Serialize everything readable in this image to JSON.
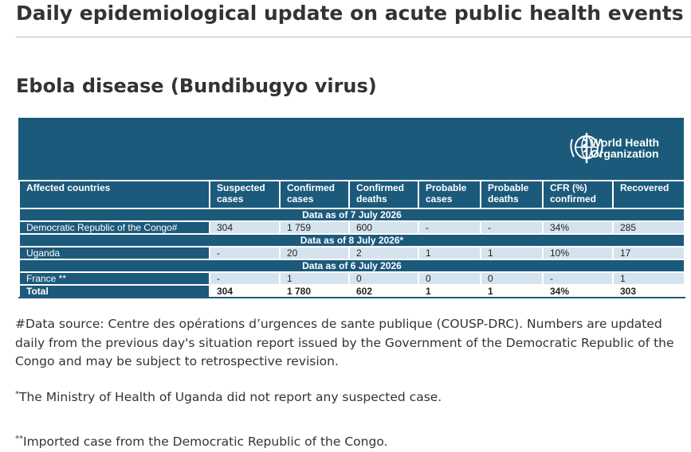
{
  "header": {
    "title": "Daily epidemiological update on acute public health events"
  },
  "section": {
    "title": "Ebola disease (Bundibugyo virus)"
  },
  "logo": {
    "line1": "World Health",
    "line2": "Organization"
  },
  "table": {
    "columns": [
      "Affected countries",
      "Suspected cases",
      "Confirmed cases",
      "Confirmed deaths",
      "Probable cases",
      "Probable deaths",
      "CFR (%) confirmed",
      "Recovered"
    ],
    "sections": [
      {
        "heading": "Data as of 7 July 2026",
        "rows": [
          [
            "Democratic Republic of the Congo#",
            "304",
            "1 759",
            "600",
            "-",
            "-",
            "34%",
            "285"
          ]
        ]
      },
      {
        "heading": "Data as of 8 July 2026*",
        "rows": [
          [
            "Uganda",
            "-",
            "20",
            "2",
            "1",
            "1",
            "10%",
            "17"
          ]
        ]
      },
      {
        "heading": "Data as of 6 July 2026",
        "rows": [
          [
            "France **",
            "-",
            "1",
            "0",
            "0",
            "0",
            "-",
            "1"
          ]
        ]
      }
    ],
    "total": [
      "Total",
      "304",
      "1 780",
      "602",
      "1",
      "1",
      "34%",
      "303"
    ]
  },
  "footnotes": [
    {
      "text": "#Data source: Centre des opérations d’urgences de sante publique (COUSP-DRC). Numbers are updated daily from the previous day's situation report issued by the Government of the Democratic Republic of the Congo and may be subject to retrospective revision."
    },
    {
      "marker": "*",
      "text": "The Ministry of Health of Uganda did not report any suspected case."
    },
    {
      "marker": "**",
      "text": "Imported case from the Democratic Republic of the Congo."
    }
  ]
}
